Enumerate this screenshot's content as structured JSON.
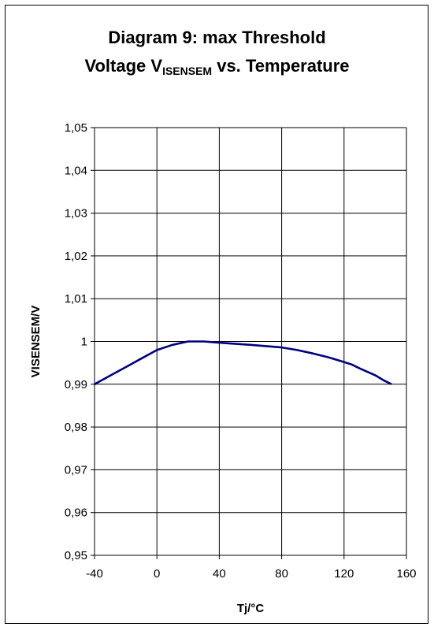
{
  "title": {
    "line1": "Diagram 9: max Threshold",
    "line2_prefix": "Voltage V",
    "line2_subscript": "ISENSEM",
    "line2_suffix": " vs. Temperature"
  },
  "chart_data": {
    "type": "line",
    "xlabel": "Tj/°C",
    "ylabel": "VISENSEM/V",
    "xlim": [
      -40,
      160
    ],
    "ylim": [
      0.95,
      1.05
    ],
    "x_ticks": [
      -40,
      0,
      40,
      80,
      120,
      160
    ],
    "x_tick_labels": [
      "-40",
      "0",
      "40",
      "80",
      "120",
      "160"
    ],
    "y_ticks": [
      0.95,
      0.96,
      0.97,
      0.98,
      0.99,
      1.0,
      1.01,
      1.02,
      1.03,
      1.04,
      1.05
    ],
    "y_tick_labels": [
      "0,95",
      "0,96",
      "0,97",
      "0,98",
      "0,99",
      "1",
      "1,01",
      "1,02",
      "1,03",
      "1,04",
      "1,05"
    ],
    "grid": true,
    "series": [
      {
        "color": "#000080",
        "x": [
          -40,
          -30,
          -20,
          -10,
          0,
          10,
          20,
          30,
          40,
          60,
          80,
          90,
          100,
          110,
          120,
          125,
          130,
          140,
          145,
          150
        ],
        "y": [
          0.99,
          0.992,
          0.994,
          0.996,
          0.998,
          0.9992,
          1.0,
          1.0,
          0.9997,
          0.9992,
          0.9986,
          0.998,
          0.9972,
          0.9963,
          0.9952,
          0.9946,
          0.9937,
          0.9921,
          0.991,
          0.9901
        ]
      }
    ]
  }
}
